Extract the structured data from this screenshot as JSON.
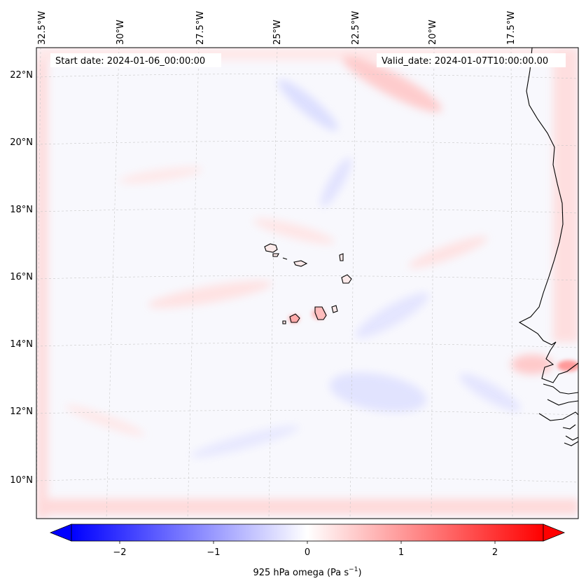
{
  "map": {
    "start_date": "Start date: 2024-01-06_00:00:00",
    "valid_date": "Valid_date: 2024-01-07T10:00:00.00",
    "lon_labels": [
      "32.5°W",
      "30°W",
      "27.5°W",
      "25°W",
      "22.5°W",
      "20°W",
      "17.5°W"
    ],
    "lat_labels": [
      "22°N",
      "20°N",
      "18°N",
      "16°N",
      "14°N",
      "12°N",
      "10°N"
    ],
    "field": "925 hPa omega",
    "colormap": "bwr",
    "colors": {
      "negative": "#0000ff",
      "zero": "#ffffff",
      "positive": "#ff0000",
      "coastline": "#000000"
    }
  },
  "colorbar": {
    "label": "925 hPa omega (Pa s",
    "label_exp": "−1",
    "label_close": ")",
    "ticks": [
      "−2",
      "−1",
      "0",
      "1",
      "2"
    ],
    "range": [
      -2.7,
      2.7
    ],
    "extend": "both"
  }
}
